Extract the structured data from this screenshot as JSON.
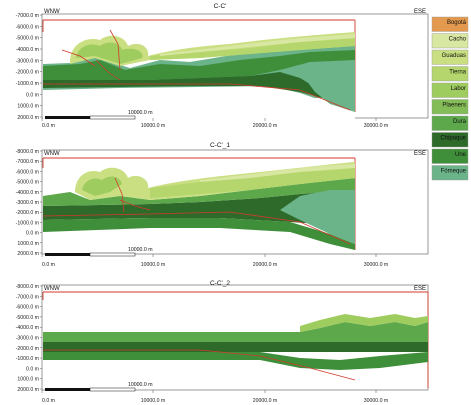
{
  "sections": [
    {
      "title": "C-C'",
      "left_label": "WNW",
      "right_label": "ESE",
      "y_ticks": [
        "-7000.0 m",
        "-6000.0 m",
        "-5000.0 m",
        "-4000.0 m",
        "-3000.0 m",
        "-2000.0 m",
        "-1000.0 m",
        "0.0 m",
        "1000.0 m",
        "2000.0 m"
      ],
      "x_ticks": [
        "0.0 m",
        "10000.0 m",
        "20000.0 m",
        "30000.0 m"
      ],
      "scale_label": "10000.0 m"
    },
    {
      "title": "C-C'_1",
      "left_label": "WNW",
      "right_label": "ESE",
      "y_ticks": [
        "-8000.0 m",
        "-7000.0 m",
        "-6000.0 m",
        "-5000.0 m",
        "-4000.0 m",
        "-3000.0 m",
        "-2000.0 m",
        "-1000.0 m",
        "0.0 m",
        "1000.0 m",
        "2000.0 m"
      ],
      "x_ticks": [
        "0.0 m",
        "10000.0 m",
        "20000.0 m",
        "30000.0 m"
      ],
      "scale_label": "10000.0 m"
    },
    {
      "title": "C-C'_2",
      "left_label": "WNW",
      "right_label": "ESE",
      "y_ticks": [
        "-8000.0 m",
        "-7000.0 m",
        "-6000.0 m",
        "-5000.0 m",
        "-4000.0 m",
        "-3000.0 m",
        "-2000.0 m",
        "-1000.0 m",
        "0.0 m",
        "1000.0 m",
        "2000.0 m"
      ],
      "x_ticks": [
        "0.0 m",
        "10000.0 m",
        "20000.0 m",
        "30000.0 m"
      ],
      "scale_label": "10000.0 m"
    }
  ],
  "legend": [
    {
      "label": "Bogotá",
      "color": "#e39a4f"
    },
    {
      "label": "Cacho",
      "color": "#d8e7a1"
    },
    {
      "label": "Guaduas",
      "color": "#c9df82"
    },
    {
      "label": "Tierna",
      "color": "#b5d66c"
    },
    {
      "label": "Labor",
      "color": "#9fcc5e"
    },
    {
      "label": "Plaeners",
      "color": "#84bc57"
    },
    {
      "label": "Dura",
      "color": "#5ea84c"
    },
    {
      "label": "Chipaque",
      "color": "#2e6b2b"
    },
    {
      "label": "Une",
      "color": "#3f8f3a"
    },
    {
      "label": "Fómeque",
      "color": "#6bb389"
    }
  ]
}
